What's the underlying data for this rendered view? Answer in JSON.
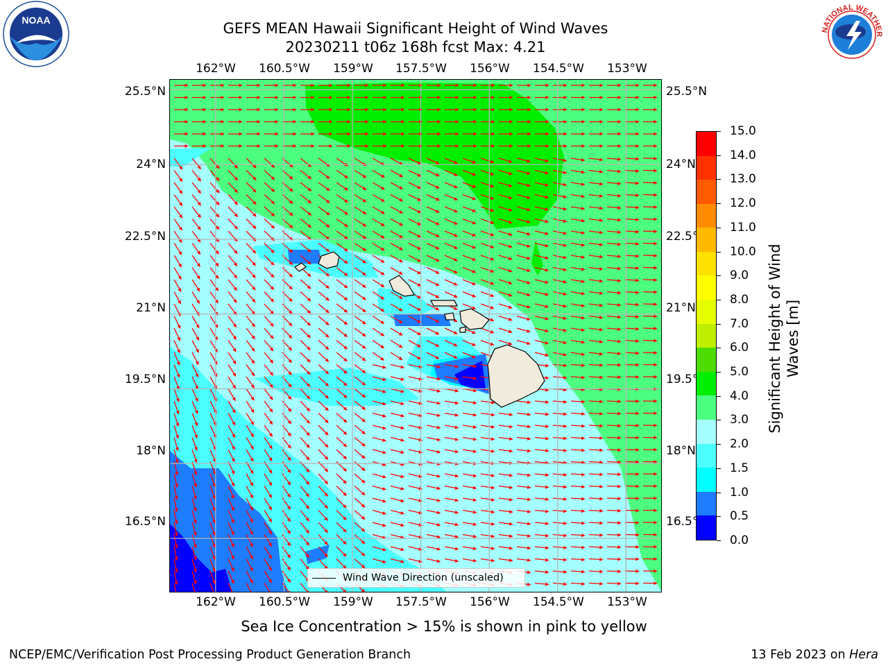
{
  "title": {
    "line1": "GEFS MEAN Hawaii Significant Height of Wind Waves",
    "line2": "20230211 t06z 168h fcst   Max: 4.21"
  },
  "axes": {
    "lon_ticks": [
      "162°W",
      "160.5°W",
      "159°W",
      "157.5°W",
      "156°W",
      "154.5°W",
      "153°W"
    ],
    "lat_ticks": [
      "25.5°N",
      "24°N",
      "22.5°N",
      "21°N",
      "19.5°N",
      "18°N",
      "16.5°N"
    ],
    "lon_range": [
      -163,
      -152.2
    ],
    "lat_range": [
      15.4,
      25.7
    ]
  },
  "legend": {
    "label": "Wind Wave Direction (unscaled)"
  },
  "colorbar": {
    "title": "Significant Height of Wind Waves [m]",
    "ticks": [
      "0.0",
      "0.5",
      "1.0",
      "1.5",
      "2.0",
      "3.0",
      "4.0",
      "5.0",
      "6.0",
      "7.0",
      "8.0",
      "9.0",
      "10.0",
      "11.0",
      "12.0",
      "13.0",
      "14.0",
      "15.0"
    ],
    "colors": [
      "#0000ff",
      "#1e7cff",
      "#00ffff",
      "#4cffff",
      "#a6ffff",
      "#4dff80",
      "#00ee00",
      "#4ddc00",
      "#c0ee00",
      "#e6ff00",
      "#ffff00",
      "#ffe100",
      "#ffb900",
      "#ff8c00",
      "#ff5a00",
      "#ff3200",
      "#ff0000"
    ]
  },
  "note": "Sea Ice Concentration > 15% is shown in pink to yellow",
  "footer": {
    "left": "NCEP/EMC/Verification Post Processing Product Generation Branch",
    "right_date": "13 Feb 2023 on",
    "right_host": "Hera"
  },
  "logos": {
    "noaa": "NOAA",
    "noaa_ring": "NATIONAL OCEANIC AND ATMOSPHERIC ADMINISTRATION · U.S. DEPARTMENT OF COMMERCE",
    "nws": "NATIONAL WEATHER SERVICE"
  },
  "colors": {
    "arrow": "#ff0000",
    "land": "#f0ebdc",
    "grid": "#b4b4b4"
  }
}
